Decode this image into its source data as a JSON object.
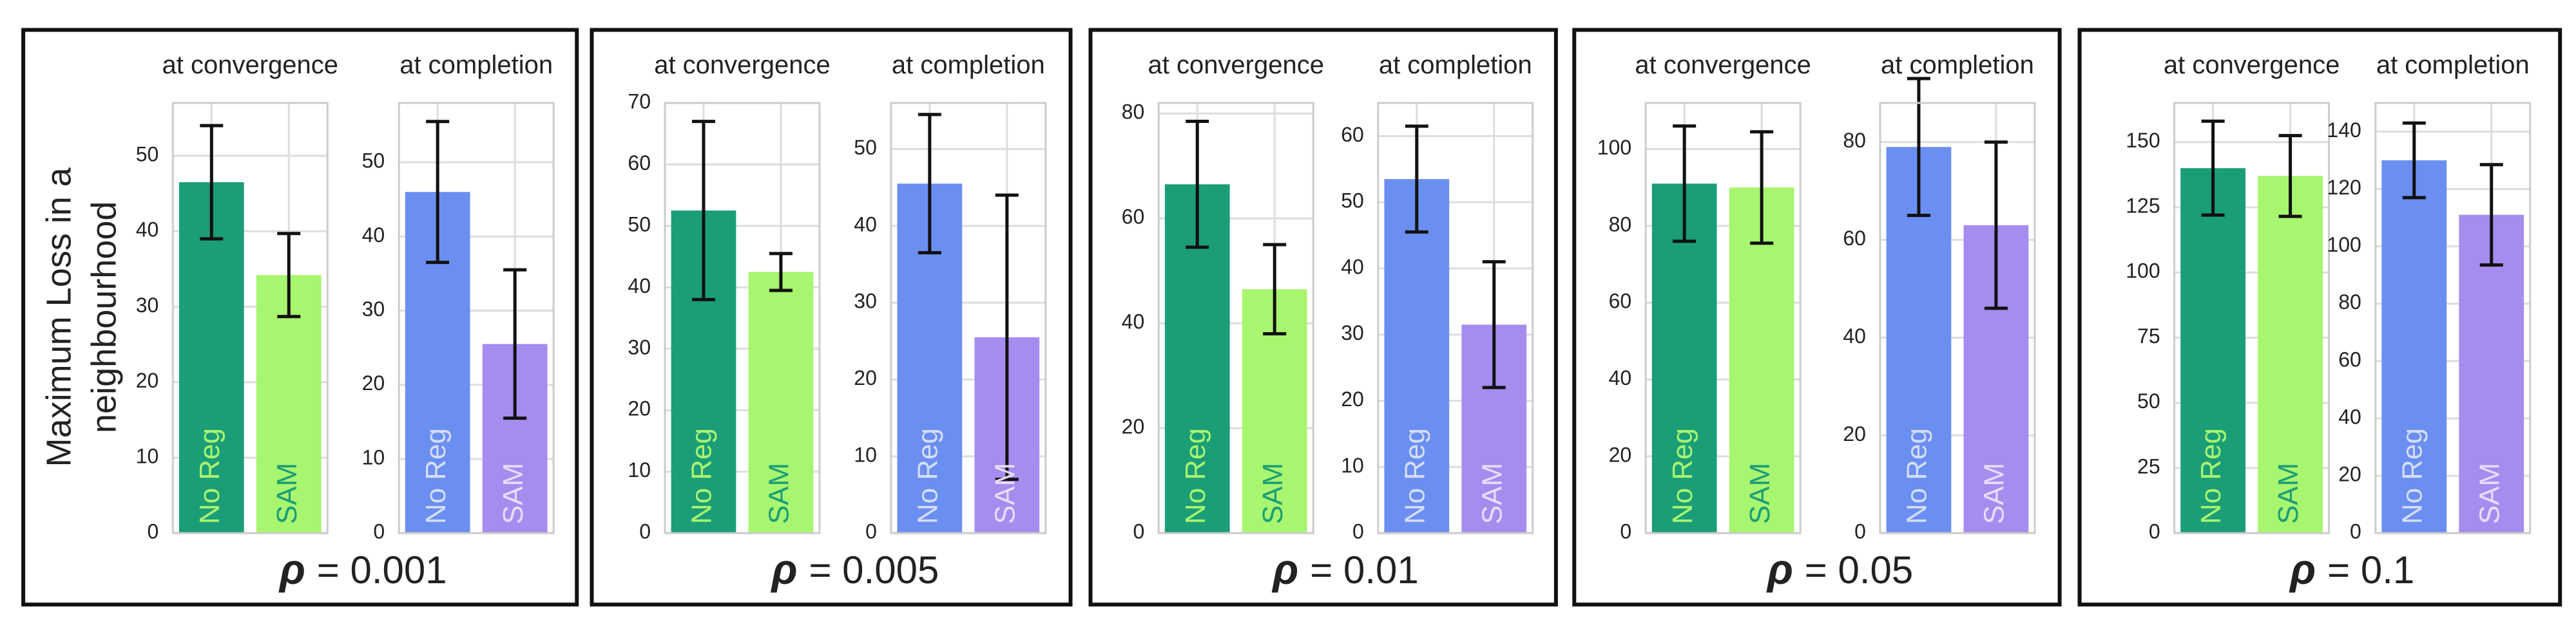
{
  "ylabel_lines": [
    "Maximum Loss in a",
    "neighbourhood"
  ],
  "panels": [
    {
      "symbol": "ρ",
      "value": "= 0.001"
    },
    {
      "symbol": "ρ",
      "value": "= 0.005"
    },
    {
      "symbol": "ρ",
      "value": "= 0.01"
    },
    {
      "symbol": "ρ",
      "value": "= 0.05"
    },
    {
      "symbol": "ρ",
      "value": "= 0.1"
    }
  ],
  "chart_data": [
    {
      "type": "bar",
      "title": "at convergence",
      "categories": [
        "No Reg",
        "SAM"
      ],
      "values": [
        46.5,
        34.2
      ],
      "errors": [
        7.5,
        5.5
      ],
      "colors": [
        "#1b9e77",
        "#a8f56f"
      ],
      "label_colors": [
        "#a8f56f",
        "#1b9e77"
      ],
      "ylim": [
        0,
        57
      ],
      "yticks": [
        0,
        10,
        20,
        30,
        40,
        50
      ],
      "grid": true
    },
    {
      "type": "bar",
      "title": "at completion",
      "categories": [
        "No Reg",
        "SAM"
      ],
      "values": [
        46,
        25.5
      ],
      "errors": [
        9.5,
        10
      ],
      "colors": [
        "#6a8ff0",
        "#a68cef"
      ],
      "label_colors": [
        "#d6ddf5",
        "#e6def8"
      ],
      "ylim": [
        0,
        58
      ],
      "yticks": [
        0,
        10,
        20,
        30,
        40,
        50
      ],
      "grid": true
    },
    {
      "type": "bar",
      "title": "at convergence",
      "categories": [
        "No Reg",
        "SAM"
      ],
      "values": [
        52.5,
        42.5
      ],
      "errors": [
        14.5,
        3
      ],
      "colors": [
        "#1b9e77",
        "#a8f56f"
      ],
      "label_colors": [
        "#a8f56f",
        "#1b9e77"
      ],
      "ylim": [
        0,
        70
      ],
      "yticks": [
        0,
        10,
        20,
        30,
        40,
        50,
        60,
        70
      ],
      "grid": true
    },
    {
      "type": "bar",
      "title": "at completion",
      "categories": [
        "No Reg",
        "SAM"
      ],
      "values": [
        45.5,
        25.5
      ],
      "errors": [
        9,
        18.5
      ],
      "colors": [
        "#6a8ff0",
        "#a68cef"
      ],
      "label_colors": [
        "#d6ddf5",
        "#e6def8"
      ],
      "ylim": [
        0,
        56
      ],
      "yticks": [
        0,
        10,
        20,
        30,
        40,
        50
      ],
      "grid": true
    },
    {
      "type": "bar",
      "title": "at convergence",
      "categories": [
        "No Reg",
        "SAM"
      ],
      "values": [
        66.5,
        46.5
      ],
      "errors": [
        12,
        8.5
      ],
      "colors": [
        "#1b9e77",
        "#a8f56f"
      ],
      "label_colors": [
        "#a8f56f",
        "#1b9e77"
      ],
      "ylim": [
        0,
        82
      ],
      "yticks": [
        0,
        20,
        40,
        60,
        80
      ],
      "grid": true
    },
    {
      "type": "bar",
      "title": "at completion",
      "categories": [
        "No Reg",
        "SAM"
      ],
      "values": [
        53.5,
        31.5
      ],
      "errors": [
        8,
        9.5
      ],
      "colors": [
        "#6a8ff0",
        "#a68cef"
      ],
      "label_colors": [
        "#d6ddf5",
        "#e6def8"
      ],
      "ylim": [
        0,
        65
      ],
      "yticks": [
        0,
        10,
        20,
        30,
        40,
        50,
        60
      ],
      "grid": true
    },
    {
      "type": "bar",
      "title": "at convergence",
      "categories": [
        "No Reg",
        "SAM"
      ],
      "values": [
        91,
        90
      ],
      "errors": [
        15,
        14.5
      ],
      "colors": [
        "#1b9e77",
        "#a8f56f"
      ],
      "label_colors": [
        "#a8f56f",
        "#1b9e77"
      ],
      "ylim": [
        0,
        112
      ],
      "yticks": [
        0,
        20,
        40,
        60,
        80,
        100
      ],
      "grid": true
    },
    {
      "type": "bar",
      "title": "at completion",
      "categories": [
        "No Reg",
        "SAM"
      ],
      "values": [
        79,
        63
      ],
      "errors": [
        14,
        17
      ],
      "colors": [
        "#6a8ff0",
        "#a68cef"
      ],
      "label_colors": [
        "#d6ddf5",
        "#e6def8"
      ],
      "ylim": [
        0,
        88
      ],
      "yticks": [
        0,
        20,
        40,
        60,
        80
      ],
      "grid": true
    },
    {
      "type": "bar",
      "title": "at convergence",
      "categories": [
        "No Reg",
        "SAM"
      ],
      "values": [
        140,
        137
      ],
      "errors": [
        18,
        15.5
      ],
      "colors": [
        "#1b9e77",
        "#a8f56f"
      ],
      "label_colors": [
        "#a8f56f",
        "#1b9e77"
      ],
      "ylim": [
        0,
        165
      ],
      "yticks": [
        0,
        25,
        50,
        75,
        100,
        125,
        150
      ],
      "grid": true
    },
    {
      "type": "bar",
      "title": "at completion",
      "categories": [
        "No Reg",
        "SAM"
      ],
      "values": [
        130,
        111
      ],
      "errors": [
        13,
        17.5
      ],
      "colors": [
        "#6a8ff0",
        "#a68cef"
      ],
      "label_colors": [
        "#d6ddf5",
        "#e6def8"
      ],
      "ylim": [
        0,
        150
      ],
      "yticks": [
        0,
        20,
        40,
        60,
        80,
        100,
        120,
        140
      ],
      "grid": true
    }
  ]
}
